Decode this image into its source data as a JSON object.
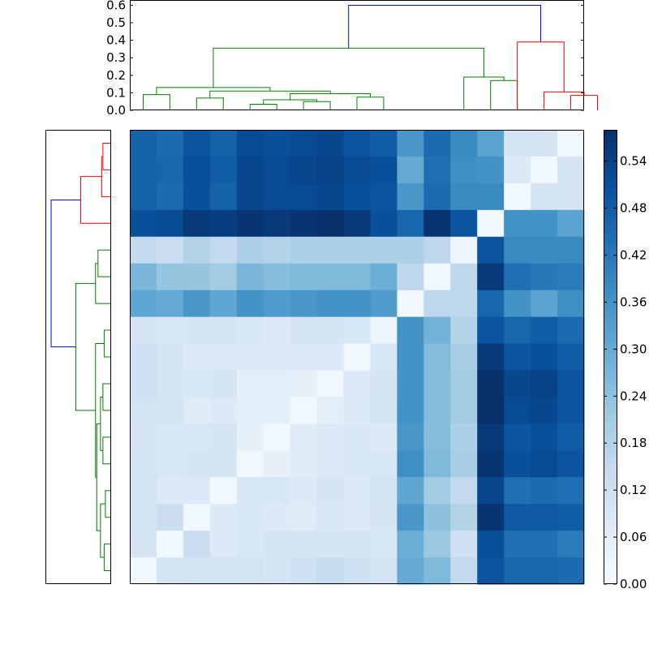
{
  "chart_data": [
    {
      "type": "dendrogram",
      "orientation": "top",
      "ylim": [
        0,
        0.63
      ],
      "yticks": [
        "0.0",
        "0.1",
        "0.2",
        "0.3",
        "0.4",
        "0.5",
        "0.6"
      ],
      "leaves": 17,
      "links": [
        {
          "a": 0,
          "b": 1,
          "h": 0.09,
          "color": "#008000"
        },
        {
          "a": 2,
          "b": 3,
          "h": 0.07,
          "color": "#008000"
        },
        {
          "a": 4,
          "b": 5,
          "h": 0.035,
          "color": "#008000"
        },
        {
          "a": 6,
          "b": 7,
          "h": 0.05,
          "color": "#008000"
        },
        {
          "a": 8,
          "b": 9,
          "h": 0.075,
          "color": "#008000"
        },
        {
          "a": 13,
          "b": 14,
          "h": 0.17,
          "color": "#008000"
        },
        {
          "a": 4.5,
          "b": 6.5,
          "h": 0.06,
          "color": "#008000"
        },
        {
          "a": 5.5,
          "b": 8.5,
          "h": 0.095,
          "color": "#008000"
        },
        {
          "a": 2.5,
          "b": 7.0,
          "h": 0.11,
          "color": "#008000"
        },
        {
          "a": 0.5,
          "b": 4.75,
          "h": 0.13,
          "color": "#008000"
        },
        {
          "a": 12,
          "b": 13.5,
          "h": 0.19,
          "color": "#008000"
        },
        {
          "a": 2.625,
          "b": 12.75,
          "h": 0.355,
          "color": "#008000"
        },
        {
          "a": 16,
          "b": 17,
          "h": 0.085,
          "color": "#ff0000"
        },
        {
          "a": 15,
          "b": 16.5,
          "h": 0.105,
          "color": "#ff0000"
        },
        {
          "a": 14,
          "b": 15.75,
          "h": 0.39,
          "color": "#ff0000"
        },
        {
          "a": 7.6875,
          "b": 14.875,
          "h": 0.6,
          "color": "#0000ff"
        }
      ]
    },
    {
      "type": "dendrogram",
      "orientation": "left",
      "leaves": 17,
      "links": [
        {
          "a": 0,
          "b": 1,
          "h": 0.03,
          "color": "#ff0000"
        },
        {
          "a": 0.5,
          "b": 2,
          "h": 0.035,
          "color": "#ff0000"
        },
        {
          "a": 1.25,
          "b": 3,
          "h": 0.12,
          "color": "#ff0000"
        },
        {
          "a": 4,
          "b": 5,
          "h": 0.05,
          "color": "#008000"
        },
        {
          "a": 6,
          "b": 4.5,
          "h": 0.06,
          "color": "#008000"
        },
        {
          "a": 7,
          "b": 8,
          "h": 0.025,
          "color": "#008000"
        },
        {
          "a": 9,
          "b": 10,
          "h": 0.03,
          "color": "#008000"
        },
        {
          "a": 11,
          "b": 12,
          "h": 0.03,
          "color": "#008000"
        },
        {
          "a": 13,
          "b": 14,
          "h": 0.02,
          "color": "#008000"
        },
        {
          "a": 15,
          "b": 16,
          "h": 0.025,
          "color": "#008000"
        },
        {
          "a": 9.5,
          "b": 11.5,
          "h": 0.04,
          "color": "#008000"
        },
        {
          "a": 13.5,
          "b": 15.5,
          "h": 0.04,
          "color": "#008000"
        },
        {
          "a": 10.5,
          "b": 14.5,
          "h": 0.055,
          "color": "#008000"
        },
        {
          "a": 7.5,
          "b": 12.5,
          "h": 0.06,
          "color": "#008000"
        },
        {
          "a": 5.25,
          "b": 10.0,
          "h": 0.14,
          "color": "#008000"
        },
        {
          "a": 2.125,
          "b": 7.625,
          "h": 0.24,
          "color": "#0000ff"
        }
      ],
      "hmax": 0.25
    },
    {
      "type": "heatmap",
      "rows": 17,
      "cols": 17,
      "colormap": "Blues",
      "vmin": 0.0,
      "vmax": 0.58,
      "values": [
        [
          0.47,
          0.45,
          0.5,
          0.47,
          0.52,
          0.51,
          0.52,
          0.53,
          0.5,
          0.48,
          0.35,
          0.45,
          0.38,
          0.32,
          0.1,
          0.1,
          0.02
        ],
        [
          0.47,
          0.46,
          0.51,
          0.48,
          0.53,
          0.52,
          0.53,
          0.54,
          0.52,
          0.51,
          0.3,
          0.44,
          0.37,
          0.36,
          0.08,
          0.02,
          0.1
        ],
        [
          0.47,
          0.45,
          0.51,
          0.47,
          0.53,
          0.52,
          0.52,
          0.53,
          0.51,
          0.5,
          0.35,
          0.45,
          0.38,
          0.38,
          0.02,
          0.1,
          0.1
        ],
        [
          0.51,
          0.52,
          0.56,
          0.55,
          0.57,
          0.56,
          0.57,
          0.58,
          0.56,
          0.51,
          0.46,
          0.57,
          0.5,
          0.02,
          0.36,
          0.36,
          0.32
        ],
        [
          0.15,
          0.13,
          0.18,
          0.15,
          0.19,
          0.18,
          0.19,
          0.19,
          0.19,
          0.19,
          0.19,
          0.16,
          0.03,
          0.5,
          0.38,
          0.38,
          0.38
        ],
        [
          0.27,
          0.23,
          0.23,
          0.21,
          0.27,
          0.25,
          0.26,
          0.26,
          0.26,
          0.29,
          0.16,
          0.02,
          0.16,
          0.56,
          0.44,
          0.42,
          0.41
        ],
        [
          0.31,
          0.3,
          0.35,
          0.31,
          0.36,
          0.34,
          0.35,
          0.36,
          0.36,
          0.34,
          0.02,
          0.16,
          0.16,
          0.46,
          0.36,
          0.32,
          0.37
        ],
        [
          0.1,
          0.09,
          0.1,
          0.1,
          0.09,
          0.08,
          0.1,
          0.1,
          0.09,
          0.03,
          0.36,
          0.28,
          0.18,
          0.5,
          0.46,
          0.48,
          0.45
        ],
        [
          0.12,
          0.1,
          0.08,
          0.08,
          0.08,
          0.08,
          0.08,
          0.08,
          0.02,
          0.09,
          0.36,
          0.25,
          0.2,
          0.56,
          0.5,
          0.51,
          0.48
        ],
        [
          0.12,
          0.1,
          0.09,
          0.1,
          0.06,
          0.06,
          0.05,
          0.02,
          0.08,
          0.1,
          0.36,
          0.25,
          0.21,
          0.58,
          0.53,
          0.54,
          0.5
        ],
        [
          0.11,
          0.11,
          0.07,
          0.08,
          0.06,
          0.06,
          0.02,
          0.06,
          0.08,
          0.11,
          0.36,
          0.25,
          0.21,
          0.58,
          0.52,
          0.53,
          0.5
        ],
        [
          0.1,
          0.09,
          0.09,
          0.1,
          0.05,
          0.02,
          0.07,
          0.08,
          0.09,
          0.08,
          0.35,
          0.25,
          0.19,
          0.56,
          0.5,
          0.51,
          0.48
        ],
        [
          0.11,
          0.09,
          0.1,
          0.1,
          0.02,
          0.05,
          0.07,
          0.08,
          0.09,
          0.09,
          0.37,
          0.26,
          0.2,
          0.57,
          0.51,
          0.52,
          0.5
        ],
        [
          0.11,
          0.08,
          0.08,
          0.02,
          0.09,
          0.09,
          0.08,
          0.1,
          0.08,
          0.11,
          0.31,
          0.21,
          0.15,
          0.53,
          0.44,
          0.45,
          0.44
        ],
        [
          0.11,
          0.13,
          0.02,
          0.08,
          0.09,
          0.08,
          0.07,
          0.09,
          0.08,
          0.1,
          0.35,
          0.24,
          0.18,
          0.57,
          0.49,
          0.49,
          0.48
        ],
        [
          0.1,
          0.02,
          0.13,
          0.08,
          0.09,
          0.1,
          0.1,
          0.1,
          0.1,
          0.09,
          0.29,
          0.22,
          0.12,
          0.51,
          0.44,
          0.44,
          0.41
        ],
        [
          0.02,
          0.1,
          0.11,
          0.11,
          0.11,
          0.1,
          0.12,
          0.14,
          0.12,
          0.1,
          0.3,
          0.26,
          0.15,
          0.5,
          0.46,
          0.46,
          0.45
        ]
      ]
    },
    {
      "type": "colorbar",
      "ticks": [
        "0.00",
        "0.06",
        "0.12",
        "0.18",
        "0.24",
        "0.30",
        "0.36",
        "0.42",
        "0.48",
        "0.54"
      ],
      "tick_values": [
        0.0,
        0.06,
        0.12,
        0.18,
        0.24,
        0.3,
        0.36,
        0.42,
        0.48,
        0.54
      ]
    }
  ]
}
